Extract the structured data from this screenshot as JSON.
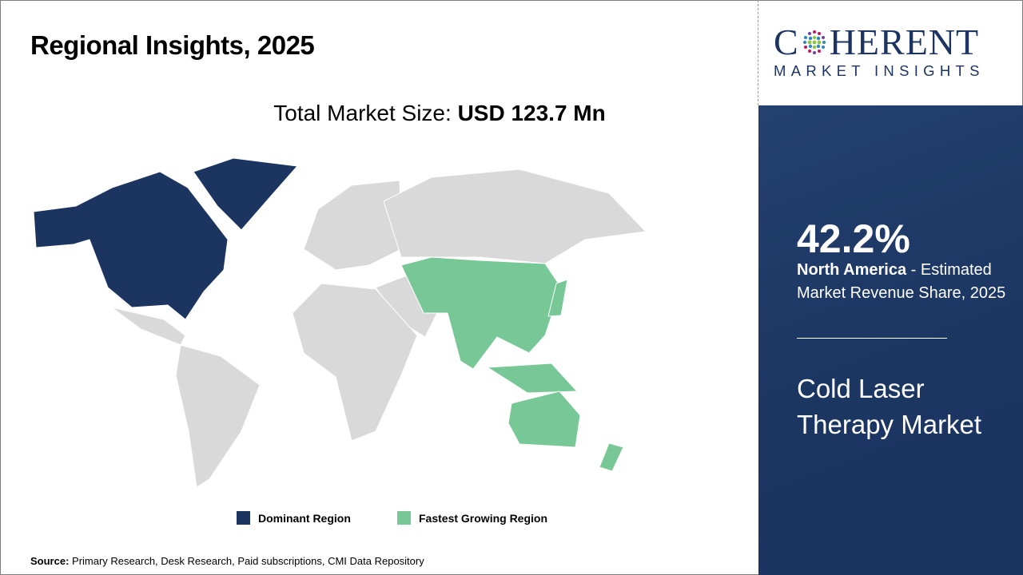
{
  "header": {
    "title": "Regional Insights, 2025"
  },
  "total_market": {
    "label": "Total Market Size:",
    "value": "USD 123.7 Mn"
  },
  "legend": [
    {
      "label": "Dominant Region",
      "color": "#1b3560"
    },
    {
      "label": "Fastest Growing Region",
      "color": "#77c896"
    }
  ],
  "map": {
    "dominant_region": "North America",
    "fastest_growing_region": "Asia Pacific",
    "other_color": "#d9d9d9"
  },
  "source": {
    "label": "Source:",
    "text": " Primary Research, Desk Research, Paid subscriptions, CMI Data Repository"
  },
  "logo": {
    "main_left": "C",
    "main_right": "HERENT",
    "sub": "MARKET INSIGHTS"
  },
  "panel": {
    "share": "42.2%",
    "region": "North America",
    "description": " - Estimated Market Revenue Share, 2025",
    "market_name": "Cold Laser Therapy Market",
    "background": "#1d3762"
  }
}
